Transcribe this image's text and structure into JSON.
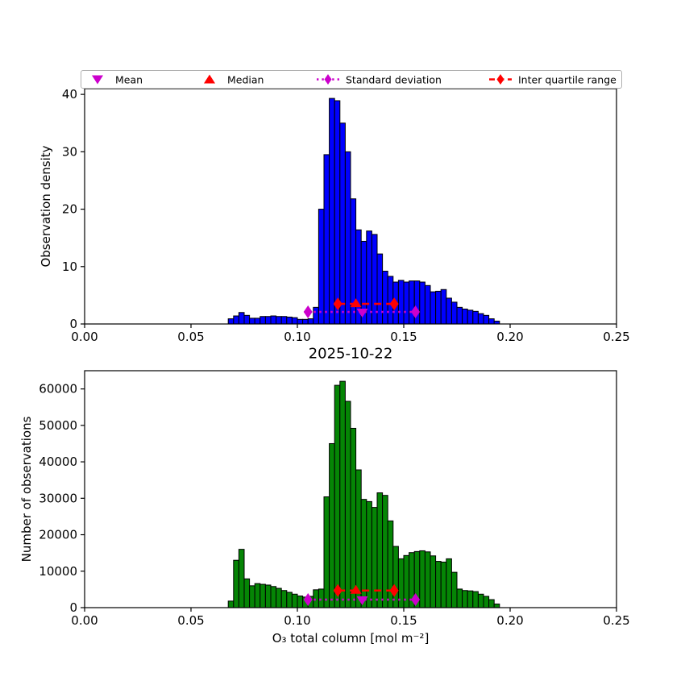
{
  "figure": {
    "title": "2025-10-22",
    "background": "#ffffff"
  },
  "legend": {
    "items": [
      {
        "label": "Mean",
        "marker": "triangle-down",
        "line": "none",
        "color": "#cc00cc"
      },
      {
        "label": "Median",
        "marker": "triangle-up",
        "line": "none",
        "color": "#ff0000"
      },
      {
        "label": "Standard deviation",
        "marker": "diamond",
        "line": "dotted",
        "color": "#cc00cc"
      },
      {
        "label": "Inter quartile range",
        "marker": "diamond",
        "line": "dashed",
        "color": "#ff0000"
      }
    ]
  },
  "stats": {
    "mean": 0.1305,
    "median": 0.1275,
    "std_range": [
      0.105,
      0.1555
    ],
    "iqr": [
      0.119,
      0.1455
    ]
  },
  "colors": {
    "bar_top": "#0000ff",
    "bar_bottom": "#058505",
    "edge": "#000000",
    "magenta": "#cc00cc",
    "red": "#ff0000",
    "axis": "#000000"
  },
  "chart_data": [
    {
      "type": "bar",
      "title": "",
      "xlabel": "",
      "ylabel": "Observation density",
      "bar_color": "#0000ff",
      "edge_color": "#000000",
      "bin_start": 0.0675,
      "bin_width": 0.0025,
      "values": [
        0.9,
        1.4,
        2.0,
        1.5,
        1.0,
        1.0,
        1.3,
        1.3,
        1.4,
        1.3,
        1.3,
        1.2,
        1.1,
        0.8,
        0.8,
        0.9,
        2.9,
        20.0,
        29.5,
        39.3,
        38.9,
        35.0,
        30.0,
        21.8,
        16.4,
        14.4,
        16.2,
        15.6,
        12.2,
        9.2,
        8.3,
        7.3,
        7.6,
        7.3,
        7.5,
        7.5,
        7.3,
        6.7,
        5.6,
        5.7,
        6.0,
        4.5,
        3.8,
        2.9,
        2.6,
        2.4,
        2.2,
        1.8,
        1.5,
        0.9,
        0.5
      ],
      "xlim": [
        0,
        0.25
      ],
      "ylim": [
        0,
        41
      ],
      "xtick_values": [
        0,
        0.05,
        0.1,
        0.15,
        0.2,
        0.25
      ],
      "xtick_labels": [
        "0.00",
        "0.05",
        "0.10",
        "0.15",
        "0.20",
        "0.25"
      ],
      "ytick_values": [
        0,
        10,
        20,
        30,
        40
      ],
      "ytick_labels": [
        "0",
        "10",
        "20",
        "30",
        "40"
      ],
      "grid": false,
      "markers": {
        "std_y": 2.1,
        "iqr_y": 3.5
      }
    },
    {
      "type": "bar",
      "title": "",
      "xlabel": "O₃ total column [mol m⁻²]",
      "ylabel": "Number of observations",
      "bar_color": "#058505",
      "edge_color": "#000000",
      "bin_start": 0.0675,
      "bin_width": 0.0025,
      "values": [
        1800,
        13000,
        16000,
        7900,
        6000,
        6600,
        6400,
        6200,
        5800,
        5300,
        4700,
        4200,
        3700,
        3200,
        2900,
        3100,
        4900,
        5100,
        30400,
        45000,
        61000,
        62100,
        56600,
        49200,
        37800,
        29700,
        29100,
        27500,
        31500,
        30800,
        23800,
        16800,
        13400,
        14300,
        15100,
        15400,
        15600,
        15300,
        14200,
        12700,
        12500,
        13400,
        9700,
        5100,
        4700,
        4600,
        4400,
        3700,
        3100,
        2200,
        1000
      ],
      "xlim": [
        0,
        0.25
      ],
      "ylim": [
        0,
        65000
      ],
      "xtick_values": [
        0,
        0.05,
        0.1,
        0.15,
        0.2,
        0.25
      ],
      "xtick_labels": [
        "0.00",
        "0.05",
        "0.10",
        "0.15",
        "0.20",
        "0.25"
      ],
      "ytick_values": [
        0,
        10000,
        20000,
        30000,
        40000,
        50000,
        60000
      ],
      "ytick_labels": [
        "0",
        "10000",
        "20000",
        "30000",
        "40000",
        "50000",
        "60000"
      ],
      "grid": false,
      "markers": {
        "std_y": 2200,
        "iqr_y": 4700
      }
    }
  ]
}
